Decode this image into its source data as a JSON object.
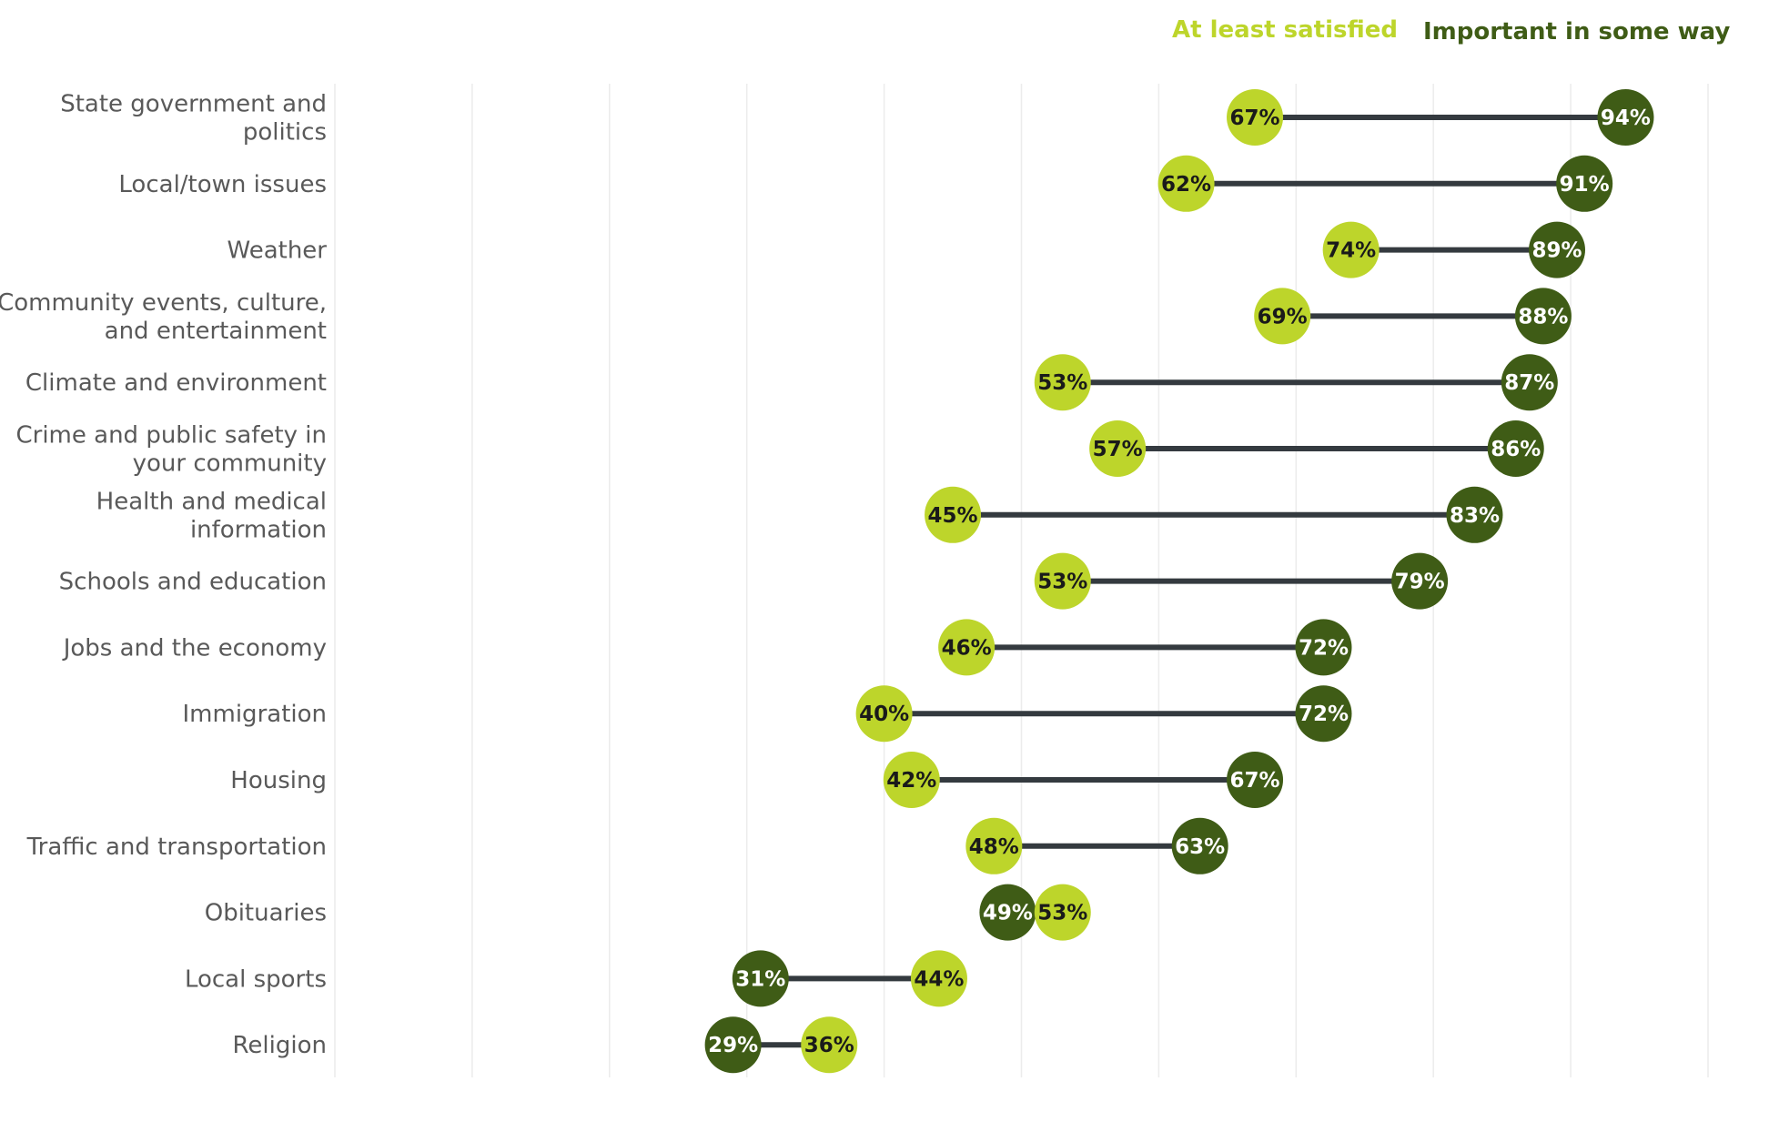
{
  "chart_data": {
    "type": "dumbbell",
    "title": "",
    "xlabel": "",
    "ylabel": "",
    "xlim": [
      0,
      100
    ],
    "gridlines": true,
    "legend_position": "top-right",
    "series": [
      {
        "name": "At least satisfied",
        "color": "#bdd52b",
        "label_color": "#1a1a1a"
      },
      {
        "name": "Important in some way",
        "color": "#3f5c16",
        "label_color": "#ffffff"
      }
    ],
    "connector_color": "#343a3f",
    "rows": [
      {
        "category": [
          "State government and",
          "politics"
        ],
        "satisfied": 67,
        "important": 94,
        "satisfied_label": "67%",
        "important_label": "94%"
      },
      {
        "category": [
          "Local/town issues"
        ],
        "satisfied": 62,
        "important": 91,
        "satisfied_label": "62%",
        "important_label": "91%"
      },
      {
        "category": [
          "Weather"
        ],
        "satisfied": 74,
        "important": 89,
        "satisfied_label": "74%",
        "important_label": "89%"
      },
      {
        "category": [
          "Community events, culture,",
          "and entertainment"
        ],
        "satisfied": 69,
        "important": 88,
        "satisfied_label": "69%",
        "important_label": "88%"
      },
      {
        "category": [
          "Climate and environment"
        ],
        "satisfied": 53,
        "important": 87,
        "satisfied_label": "53%",
        "important_label": "87%"
      },
      {
        "category": [
          "Crime and public safety in",
          "your community"
        ],
        "satisfied": 57,
        "important": 86,
        "satisfied_label": "57%",
        "important_label": "86%"
      },
      {
        "category": [
          "Health and medical",
          "information"
        ],
        "satisfied": 45,
        "important": 83,
        "satisfied_label": "45%",
        "important_label": "83%"
      },
      {
        "category": [
          "Schools and education"
        ],
        "satisfied": 53,
        "important": 79,
        "satisfied_label": "53%",
        "important_label": "79%"
      },
      {
        "category": [
          "Jobs and the economy"
        ],
        "satisfied": 46,
        "important": 72,
        "satisfied_label": "46%",
        "important_label": "72%"
      },
      {
        "category": [
          "Immigration"
        ],
        "satisfied": 40,
        "important": 72,
        "satisfied_label": "40%",
        "important_label": "72%"
      },
      {
        "category": [
          "Housing"
        ],
        "satisfied": 42,
        "important": 67,
        "satisfied_label": "42%",
        "important_label": "67%"
      },
      {
        "category": [
          "Traffic and transportation"
        ],
        "satisfied": 48,
        "important": 63,
        "satisfied_label": "48%",
        "important_label": "63%"
      },
      {
        "category": [
          "Obituaries"
        ],
        "satisfied": 53,
        "important": 49,
        "satisfied_label": "53%",
        "important_label": "49%"
      },
      {
        "category": [
          "Local sports"
        ],
        "satisfied": 44,
        "important": 31,
        "satisfied_label": "44%",
        "important_label": "31%"
      },
      {
        "category": [
          "Religion"
        ],
        "satisfied": 36,
        "important": 29,
        "satisfied_label": "36%",
        "important_label": "29%"
      }
    ]
  }
}
